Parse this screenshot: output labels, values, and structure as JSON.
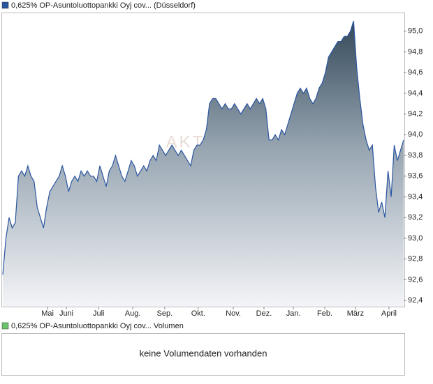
{
  "chart_data": [
    {
      "type": "area",
      "watermark": "AKTIEN",
      "series": [
        {
          "name": "0,625% OP-Asuntoluottopankki Oyj cov... (Düsseldorf)",
          "color": "#2a55a0",
          "values": [
            92.65,
            93.0,
            93.2,
            93.1,
            93.15,
            93.6,
            93.65,
            93.6,
            93.7,
            93.6,
            93.55,
            93.3,
            93.2,
            93.1,
            93.3,
            93.45,
            93.5,
            93.55,
            93.6,
            93.7,
            93.6,
            93.45,
            93.55,
            93.6,
            93.55,
            93.65,
            93.6,
            93.65,
            93.6,
            93.6,
            93.55,
            93.7,
            93.6,
            93.5,
            93.65,
            93.7,
            93.8,
            93.7,
            93.6,
            93.55,
            93.65,
            93.75,
            93.7,
            93.6,
            93.65,
            93.7,
            93.65,
            93.75,
            93.8,
            93.75,
            93.9,
            93.85,
            93.8,
            93.85,
            93.9,
            93.85,
            93.8,
            93.85,
            93.8,
            93.75,
            93.7,
            93.85,
            93.9,
            93.9,
            93.95,
            94.05,
            94.3,
            94.35,
            94.35,
            94.3,
            94.25,
            94.3,
            94.25,
            94.25,
            94.3,
            94.25,
            94.2,
            94.25,
            94.3,
            94.25,
            94.3,
            94.35,
            94.3,
            94.35,
            94.25,
            93.95,
            93.95,
            94.0,
            93.95,
            94.05,
            94.0,
            94.1,
            94.2,
            94.3,
            94.4,
            94.45,
            94.4,
            94.45,
            94.35,
            94.3,
            94.35,
            94.45,
            94.5,
            94.6,
            94.75,
            94.8,
            94.85,
            94.9,
            94.9,
            94.95,
            94.95,
            95.0,
            95.1,
            94.65,
            94.35,
            94.1,
            93.95,
            93.85,
            93.9,
            93.5,
            93.25,
            93.35,
            93.2,
            93.65,
            93.4,
            93.9,
            93.75,
            93.85,
            93.95
          ]
        }
      ],
      "xlim": [
        0,
        128
      ],
      "xticks": [
        {
          "value": 14.3,
          "label": "Mai"
        },
        {
          "value": 20.3,
          "label": "Juni"
        },
        {
          "value": 30.6,
          "label": "Juli"
        },
        {
          "value": 41.5,
          "label": "Aug."
        },
        {
          "value": 51.7,
          "label": "Sep."
        },
        {
          "value": 62.4,
          "label": "Okt."
        },
        {
          "value": 73.6,
          "label": "Nov."
        },
        {
          "value": 83.4,
          "label": "Dez."
        },
        {
          "value": 92.8,
          "label": "Jan."
        },
        {
          "value": 102.8,
          "label": "Feb."
        },
        {
          "value": 112.6,
          "label": "März"
        },
        {
          "value": 123.3,
          "label": "April"
        }
      ],
      "ylim": [
        92.34,
        95.18
      ],
      "yticks": [
        {
          "value": 92.4,
          "label": "92,4"
        },
        {
          "value": 92.6,
          "label": "92,6"
        },
        {
          "value": 92.8,
          "label": "92,8"
        },
        {
          "value": 93.0,
          "label": "93,0"
        },
        {
          "value": 93.2,
          "label": "93,2"
        },
        {
          "value": 93.4,
          "label": "93,4"
        },
        {
          "value": 93.6,
          "label": "93,6"
        },
        {
          "value": 93.8,
          "label": "93,8"
        },
        {
          "value": 94.0,
          "label": "94,0"
        },
        {
          "value": 94.2,
          "label": "94,2"
        },
        {
          "value": 94.4,
          "label": "94,4"
        },
        {
          "value": 94.6,
          "label": "94,6"
        },
        {
          "value": 94.8,
          "label": "94,8"
        },
        {
          "value": 95.0,
          "label": "95,0"
        }
      ]
    },
    {
      "type": "volume",
      "series": [
        {
          "name": "0,625% OP-Asuntoluottopankki Oyj cov... Volumen",
          "color": "#6cc46c"
        }
      ],
      "message": "keine Volumendaten vorhanden"
    }
  ]
}
